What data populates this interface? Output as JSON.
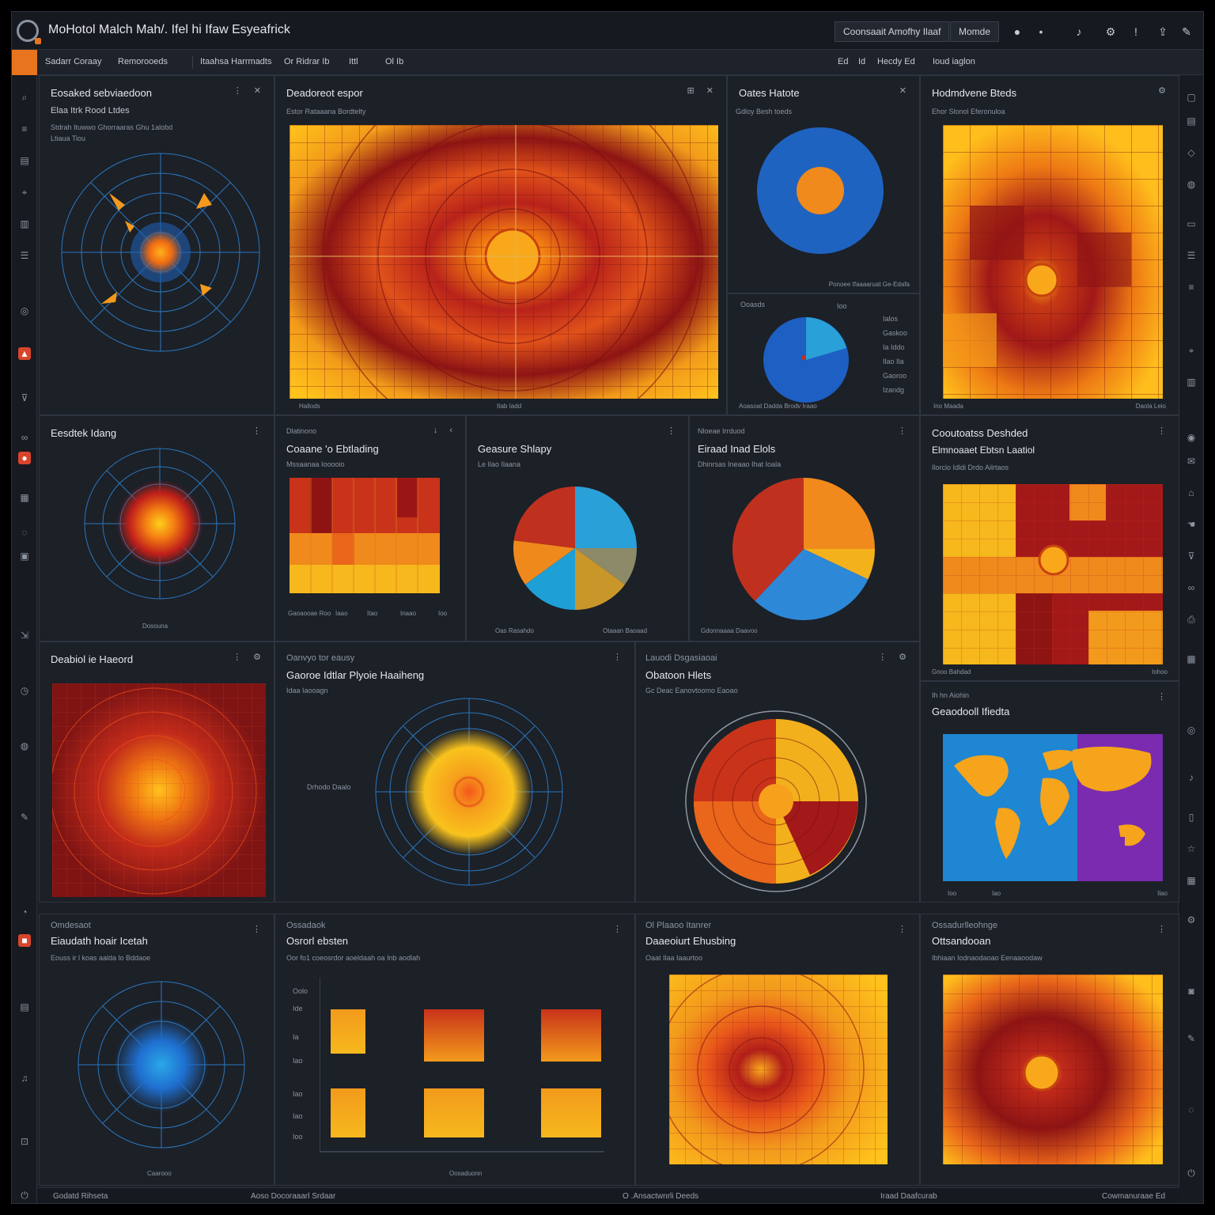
{
  "app": {
    "title": "MoHotol Malch Mah/.  Ifel hi Ifaw  Esyeafrick",
    "buttons": [
      {
        "label": "Coonsaait Amofhy Ilaaf"
      },
      {
        "label": "Momde"
      }
    ]
  },
  "toolbar": {
    "items": [
      "Sadarr Coraay",
      "Remorooeds",
      "Itaahsa Harrmadts",
      "Or Ridrar Ib",
      "Ittl",
      "Ol Ib"
    ],
    "right_items": [
      "Ed",
      "Id",
      "Hecdy Ed",
      "Ioud iaglon"
    ]
  },
  "status": {
    "left": "Godatd Rihseta",
    "middle": "Aoso Docoraaarl Srdaar",
    "center": "O .Ansactwnrli Deeds",
    "right1": "Iraad Daafcurab",
    "right2": "Cowmanuraae  Ed"
  },
  "panels": {
    "p1": {
      "title": "Eosaked sebviaedoon",
      "sub": "Elaa Itrk Rood Ltdes",
      "caption": "Stdrah Ituwwo Ghorraaras Ghu 1alobd",
      "caption2": "Ltiaua  Tiou"
    },
    "p2": {
      "title": "Deadoreot espor",
      "caption": "Estor Rataaana Bordtelty",
      "foot_left": "Hallods",
      "foot_mid": "Itab Iadd"
    },
    "p3": {
      "title": "Oates Hatote",
      "caption": "Gdloy Besh toeds",
      "foot": "Ponoee Ifaaaaruat Ge-Edafa"
    },
    "p3b": {
      "title": "Ooasds",
      "value": "Ioo",
      "foot": "Aoasoat Dadda Brodv Iraao",
      "legend": [
        "Ialos",
        "Gaskoo",
        "Ia Iddo",
        "Ilao Ila",
        "Gaoroo",
        "Izandg"
      ]
    },
    "p4": {
      "title": "Hodmdvene Bteds",
      "caption": "Ehor Slonol Eferonuloa",
      "foot_left": "Ino Maada",
      "foot_right": "Daola Leio"
    },
    "p5": {
      "title": "Eesdtek Idang",
      "caption": "Dosouna"
    },
    "p6": {
      "title": "Coaane 'o Ebtlading",
      "header": "Dlatinono",
      "caption": "Mssaanaa Iooooio",
      "cats": [
        "Gaoaooae Roo",
        "Iaao",
        "Itao",
        "Inaao",
        "Ioo"
      ]
    },
    "p7": {
      "title": "Geasure Shlapy",
      "caption": "Le Ilao Ilaana",
      "foot_left": "Oas Rasahdo",
      "foot_right": "Otaaan Baoaad"
    },
    "p8": {
      "title": "Eiraad Inad Elols",
      "header": "Nloeae Irrduod",
      "caption": "Dhinrsas Ineaao Ihat Ioala",
      "foot": "Gdonnaaaa Daavoo"
    },
    "p9": {
      "title": "Cooutoatss Deshded",
      "sub": "Elmnoaaet Ebtsn Laatiol",
      "caption": "Ilorcio Idldi Drdo Ailrtaos",
      "foot_left": "Gnoo Bahdad",
      "foot_right": "Iohoo"
    },
    "p10": {
      "title": "Deabiol ie Haeord"
    },
    "p11": {
      "title": "Gaoroe Idtlar Plyoie Haaiheng",
      "header": "Oanvyo tor eausy",
      "caption": "Idaa Iaooagn",
      "axis": "Drhodo Daalo"
    },
    "p12": {
      "title": "Obatoon Hlets",
      "header": "Lauodi Dsgasiaoai",
      "caption": "Gc Deac Eanovtoomo Eaoao"
    },
    "p13": {
      "title": "Geaodooll Ifiedta",
      "header": "Ih hn Aiohin",
      "foot_left": "Ioo",
      "foot_mid": "Iao",
      "foot_right": "Ilao"
    },
    "p14": {
      "title": "Eiaudath hoair Icetah",
      "header": "Omdesaot",
      "caption": "Eouss ir l koas aalda lo Bddaoe",
      "foot": "Caarooo"
    },
    "p15": {
      "title": "Osrorl ebsten",
      "header": "Ossadaok",
      "caption": "Oor  fo1 coeosrdor aoeldaah oa  Inb aodlah",
      "row_labels": [
        "Oolo",
        "Ide",
        "Ia",
        "Iao",
        "Iao",
        "Iao",
        "Ioo"
      ],
      "foot": "Oosaduonn"
    },
    "p16": {
      "title": "Daaeoiurt Ehusbing",
      "header": "Ol Plaaoo Itanrer",
      "caption": "Oaat Ilaa Iaaurtoo"
    },
    "p17": {
      "title": "Ottsandooan",
      "header": "Ossadurlleohnge",
      "caption": "Ibhiaan Iodnaodaoao Eenaaoodaw"
    }
  },
  "chart_data": [
    {
      "type": "pie",
      "title": "Oates Hatote",
      "values": [
        70,
        30
      ],
      "colors": [
        "#1f63c1",
        "#f08a1c"
      ]
    },
    {
      "type": "pie",
      "title": "Geasure Shlapy",
      "values": [
        25,
        10,
        15,
        15,
        12,
        23
      ],
      "colors": [
        "#2aa0d8",
        "#8c8a68",
        "#c9962a",
        "#1e9fd6",
        "#f0891c",
        "#c0301f"
      ]
    },
    {
      "type": "pie",
      "title": "Eiraad Inad Elols",
      "values": [
        25,
        7,
        30,
        38
      ],
      "colors": [
        "#f08a1c",
        "#f3b21c",
        "#2e88d8",
        "#c0301f"
      ]
    }
  ],
  "colors": {
    "accent": "#e8741d",
    "panel": "#1c2027",
    "blue": "#2aa0d8",
    "red": "#c0301f",
    "yellow": "#f3b21c"
  }
}
